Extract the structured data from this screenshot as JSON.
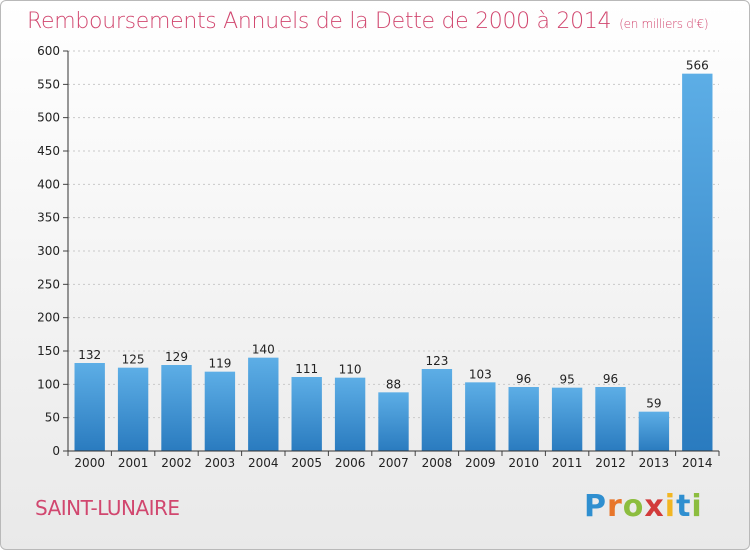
{
  "chart_data": {
    "type": "bar",
    "title": "Remboursements Annuels de la Dette de 2000 à 2014",
    "unit_note": "(en milliers d'€)",
    "categories": [
      "2000",
      "2001",
      "2002",
      "2003",
      "2004",
      "2005",
      "2006",
      "2007",
      "2008",
      "2009",
      "2010",
      "2011",
      "2012",
      "2013",
      "2014"
    ],
    "values": [
      132,
      125,
      129,
      119,
      140,
      111,
      110,
      88,
      123,
      103,
      96,
      95,
      96,
      59,
      566
    ],
    "data_labels": [
      "132",
      "125",
      "129",
      "119",
      "140",
      "111",
      "110",
      "88",
      "123",
      "103",
      "96",
      "95",
      "96",
      "59",
      "566"
    ],
    "yticks": [
      "0",
      "50",
      "100",
      "150",
      "200",
      "250",
      "300",
      "350",
      "400",
      "450",
      "500",
      "550",
      "600"
    ],
    "ylim": [
      0,
      600
    ],
    "grid": true,
    "bar_color": "#3a8fd4"
  },
  "footer": {
    "city": "SAINT-LUNAIRE",
    "logo_letters": [
      {
        "ch": "P",
        "color": "#2f8fd0"
      },
      {
        "ch": "r",
        "color": "#e8762b"
      },
      {
        "ch": "o",
        "color": "#8cbd3f"
      },
      {
        "ch": "x",
        "color": "#d23b3b"
      },
      {
        "ch": "i",
        "color": "#f2b623"
      },
      {
        "ch": "t",
        "color": "#2f8fd0"
      },
      {
        "ch": "i",
        "color": "#8cbd3f"
      }
    ]
  }
}
